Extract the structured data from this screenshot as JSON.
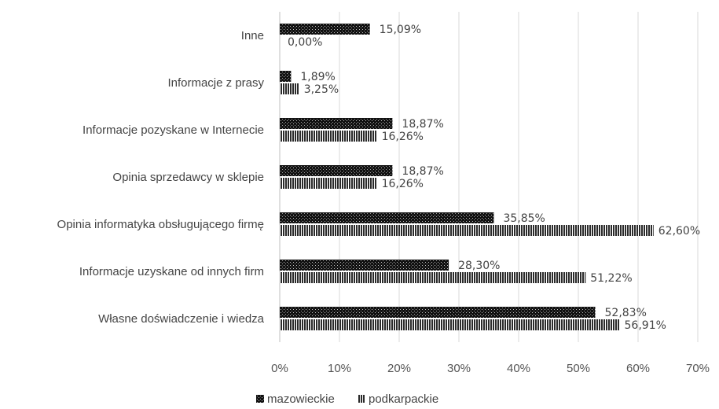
{
  "chart_data": {
    "type": "bar",
    "orientation": "horizontal",
    "categories": [
      "Inne",
      "Informacje z prasy",
      "Informacje pozyskane w Internecie",
      "Opinia sprzedawcy w sklepie",
      "Opinia informatyka obsługującego firmę",
      "Informacje uzyskane od innych firm",
      "Własne doświadczenie i wiedza"
    ],
    "series": [
      {
        "name": "mazowieckie",
        "values": [
          15.09,
          1.89,
          18.87,
          18.87,
          35.85,
          28.3,
          52.83
        ],
        "labels": [
          "15,09%",
          "1,89%",
          "18,87%",
          "18,87%",
          "35,85%",
          "28,30%",
          "52,83%"
        ],
        "pattern": "dots-dark",
        "color": "#1a1a1a"
      },
      {
        "name": "podkarpackie",
        "values": [
          0.0,
          3.25,
          16.26,
          16.26,
          62.6,
          51.22,
          56.91
        ],
        "labels": [
          "0,00%",
          "3,25%",
          "16,26%",
          "16,26%",
          "62,60%",
          "51,22%",
          "56,91%"
        ],
        "pattern": "vertical-stripes",
        "color": "#333333"
      }
    ],
    "x_ticks": [
      "0%",
      "10%",
      "20%",
      "30%",
      "40%",
      "50%",
      "60%",
      "70%"
    ],
    "xlim": [
      0,
      70
    ],
    "grid": true,
    "legend_position": "bottom",
    "title": "",
    "xlabel": "",
    "ylabel": ""
  }
}
